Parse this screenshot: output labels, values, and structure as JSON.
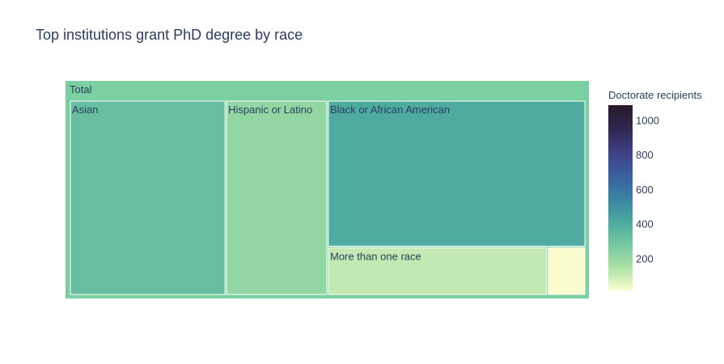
{
  "chart_data": {
    "type": "treemap",
    "title": "Top institutions grant PhD degree by race",
    "root": {
      "label": "Total",
      "value": 1090
    },
    "nodes": [
      {
        "label": "Asian",
        "value": 330
      },
      {
        "label": "Hispanic or Latino",
        "value": 215
      },
      {
        "label": "Black or African American",
        "value": 410
      },
      {
        "label": "More than one race",
        "value": 115
      },
      {
        "label": "",
        "value": 20
      }
    ],
    "colorbar": {
      "title": "Doctorate recipients",
      "range": [
        20,
        1090
      ],
      "ticks": [
        200,
        400,
        600,
        800,
        1000
      ],
      "colorscale": [
        "#fbfdce",
        "#abe1a6",
        "#74c8a2",
        "#4aa8a0",
        "#3a82a4",
        "#3b5e9f",
        "#3e3f83",
        "#2f2750",
        "#271a2c"
      ]
    }
  }
}
